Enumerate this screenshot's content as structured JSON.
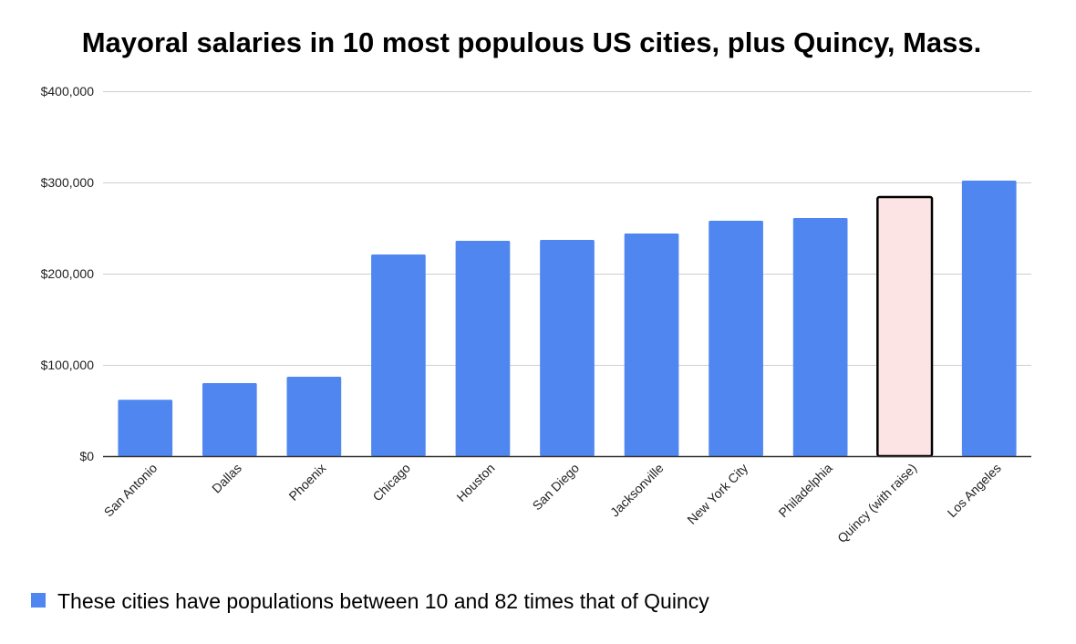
{
  "chart_data": {
    "type": "bar",
    "title": "Mayoral salaries in 10 most populous US cities, plus Quincy, Mass.",
    "xlabel": "",
    "ylabel": "",
    "ylim": [
      0,
      400000
    ],
    "yticks": [
      0,
      100000,
      200000,
      300000,
      400000
    ],
    "ytick_labels": [
      "$0",
      "$100,000",
      "$200,000",
      "$300,000",
      "$400,000"
    ],
    "categories": [
      "San Antonio",
      "Dallas",
      "Phoenix",
      "Chicago",
      "Houston",
      "San Diego",
      "Jacksonville",
      "New York City",
      "Philadelphia",
      "Quincy (with raise)",
      "Los Angeles"
    ],
    "values": [
      61725,
      80000,
      87000,
      221000,
      236000,
      237000,
      244000,
      258000,
      261000,
      285000,
      302000
    ],
    "highlight": {
      "category": "Quincy (with raise)",
      "fill": "#fde4e4",
      "stroke": "#000000"
    },
    "bar_color": "#5086f0",
    "grid": true,
    "legend": {
      "position": "bottom-left",
      "label": "These cities have populations between 10 and 82 times that of Quincy",
      "swatch_color": "#5086f0"
    }
  }
}
